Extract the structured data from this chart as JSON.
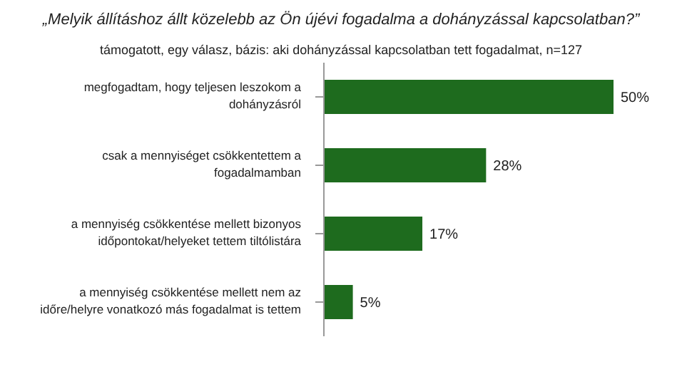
{
  "chart_data": {
    "type": "bar",
    "orientation": "horizontal",
    "title": "„Melyik állításhoz állt közelebb az Ön újévi fogadalma a dohányzással kapcsolatban?”",
    "subtitle": "támogatott, egy válasz, bázis: aki dohányzással kapcsolatban tett fogadalmat, n=127",
    "categories": [
      "megfogadtam, hogy teljesen leszokom a dohányzásról",
      "csak a mennyiséget csökkentettem a fogadalmamban",
      "a mennyiség csökkentése mellett bizonyos időpontokat/helyeket tettem tiltólistára",
      "a mennyiség csökkentése mellett nem az időre/helyre vonatkozó más fogadalmat is tettem"
    ],
    "values": [
      50,
      28,
      17,
      5
    ],
    "value_labels": [
      "50%",
      "28%",
      "17%",
      "5%"
    ],
    "color": "#1e6b1e"
  }
}
